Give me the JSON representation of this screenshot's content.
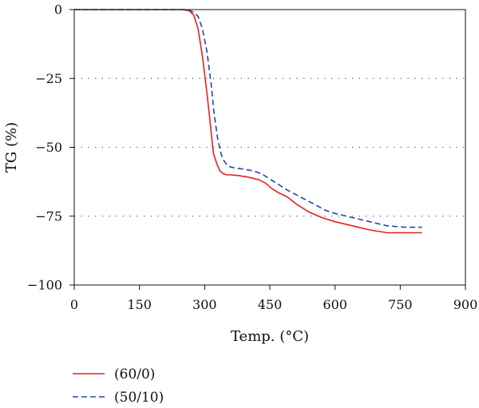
{
  "chart_data": {
    "type": "line",
    "xlabel": "Temp. (°C)",
    "ylabel": "TG (%)",
    "xlim": [
      0,
      900
    ],
    "ylim": [
      -100,
      0
    ],
    "xticks": [
      "0",
      "150",
      "300",
      "450",
      "600",
      "750",
      "900"
    ],
    "yticks": [
      "0",
      "−25",
      "−50",
      "−75",
      "−100"
    ],
    "grid": "horizontal dotted at −25, −50, −75",
    "legend_position": "bottom-left below plot",
    "series": [
      {
        "name": "(60/0)",
        "color": "#e8201e",
        "style": "solid",
        "x": [
          0,
          250,
          265,
          275,
          285,
          295,
          305,
          312,
          320,
          328,
          335,
          342,
          350,
          360,
          375,
          400,
          425,
          440,
          455,
          470,
          490,
          510,
          540,
          570,
          600,
          640,
          680,
          720,
          760,
          800
        ],
        "y": [
          0,
          0,
          -0.5,
          -2,
          -7,
          -17,
          -30,
          -40,
          -52,
          -56,
          -58.5,
          -59.5,
          -60,
          -60,
          -60.2,
          -60.8,
          -61.8,
          -63,
          -65,
          -66.5,
          -68,
          -70.5,
          -73.5,
          -75.5,
          -77,
          -78.5,
          -80,
          -81,
          -81,
          -81
        ]
      },
      {
        "name": "(50/10)",
        "color": "#2747a7",
        "style": "dashed",
        "x": [
          0,
          260,
          275,
          285,
          295,
          305,
          315,
          322,
          330,
          338,
          345,
          352,
          360,
          370,
          385,
          410,
          430,
          450,
          470,
          490,
          520,
          550,
          580,
          600,
          640,
          680,
          720,
          760,
          800
        ],
        "y": [
          0,
          0,
          -1,
          -2.5,
          -7,
          -15,
          -27,
          -38,
          -47,
          -52.5,
          -55,
          -56.5,
          -57.2,
          -57.5,
          -57.8,
          -58.5,
          -59.5,
          -61.5,
          -63.5,
          -65.5,
          -68,
          -70.5,
          -73,
          -74,
          -75.5,
          -77,
          -78.5,
          -79,
          -79
        ]
      }
    ]
  }
}
